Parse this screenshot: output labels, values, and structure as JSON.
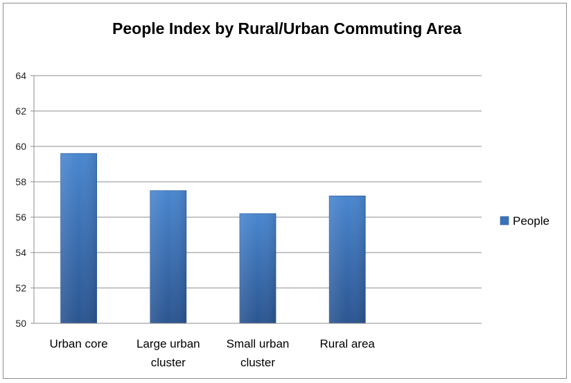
{
  "chart_data": {
    "type": "bar",
    "title": "People Index by Rural/Urban Commuting Area",
    "categories": [
      [
        "Urban core"
      ],
      [
        "Large urban",
        "cluster"
      ],
      [
        "Small urban",
        "cluster"
      ],
      [
        "Rural area"
      ]
    ],
    "series": [
      {
        "name": "People",
        "values": [
          59.6,
          57.5,
          56.2,
          57.2
        ],
        "color": "#3a72b8"
      }
    ],
    "ylim": [
      50,
      64
    ],
    "yticks": [
      50,
      52,
      54,
      56,
      58,
      60,
      62,
      64
    ],
    "grid": true,
    "legend_position": "right"
  }
}
